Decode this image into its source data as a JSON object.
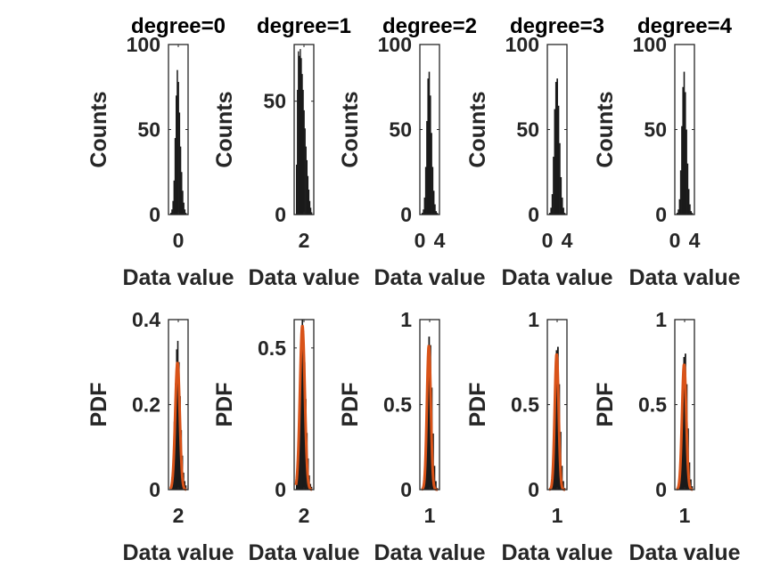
{
  "figure": {
    "background": "#ffffff",
    "axes_color": "#262626",
    "bar_color": "#1a1a1a",
    "fit_color": "#d95319"
  },
  "chart_data": [
    {
      "type": "bar",
      "title": "degree=0",
      "xlabel": "Data value",
      "ylabel": "Counts",
      "xticks": [
        "0"
      ],
      "yticks": [
        "0",
        "50",
        "100"
      ],
      "ylim": [
        0,
        100
      ],
      "series": [
        {
          "values": [
            1,
            3,
            8,
            20,
            45,
            70,
            85,
            78,
            60,
            40,
            25,
            14,
            7,
            3,
            1
          ]
        }
      ]
    },
    {
      "type": "bar",
      "title": "degree=1",
      "xlabel": "Data value",
      "ylabel": "Counts",
      "xticks": [
        "2"
      ],
      "yticks": [
        "0",
        "50"
      ],
      "ylim": [
        0,
        75
      ],
      "series": [
        {
          "values": [
            22,
            55,
            72,
            70,
            73,
            69,
            62,
            55,
            46,
            38,
            30,
            24,
            17,
            11,
            6,
            3,
            1
          ]
        }
      ]
    },
    {
      "type": "bar",
      "title": "degree=2",
      "xlabel": "Data value",
      "ylabel": "Counts",
      "xticks": [
        "0",
        "4"
      ],
      "yticks": [
        "0",
        "50",
        "100"
      ],
      "ylim": [
        0,
        100
      ],
      "series": [
        {
          "values": [
            1,
            3,
            10,
            28,
            55,
            80,
            84,
            70,
            48,
            28,
            14,
            6,
            2,
            1
          ]
        }
      ]
    },
    {
      "type": "bar",
      "title": "degree=3",
      "xlabel": "Data value",
      "ylabel": "Counts",
      "xticks": [
        "0",
        "4"
      ],
      "yticks": [
        "0",
        "50",
        "100"
      ],
      "ylim": [
        0,
        100
      ],
      "series": [
        {
          "values": [
            1,
            4,
            12,
            34,
            62,
            78,
            80,
            64,
            42,
            22,
            10,
            4,
            1
          ]
        }
      ]
    },
    {
      "type": "bar",
      "title": "degree=4",
      "xlabel": "Data value",
      "ylabel": "Counts",
      "xticks": [
        "0",
        "4"
      ],
      "yticks": [
        "0",
        "50",
        "100"
      ],
      "ylim": [
        0,
        100
      ],
      "series": [
        {
          "values": [
            1,
            3,
            9,
            26,
            52,
            75,
            84,
            72,
            50,
            30,
            15,
            6,
            2,
            1
          ]
        }
      ]
    },
    {
      "type": "bar",
      "xlabel": "Data value",
      "ylabel": "PDF",
      "xticks": [
        "2"
      ],
      "yticks": [
        "0",
        "0.2",
        "0.4"
      ],
      "ylim": [
        0,
        0.4
      ],
      "series": [
        {
          "values": [
            0.01,
            0.03,
            0.08,
            0.16,
            0.25,
            0.33,
            0.35,
            0.3,
            0.22,
            0.14,
            0.08,
            0.04,
            0.02,
            0.01
          ]
        }
      ],
      "fit": {
        "peak": 0.3,
        "center": 0.45,
        "width": 0.14
      }
    },
    {
      "type": "bar",
      "xlabel": "Data value",
      "ylabel": "PDF",
      "xticks": [
        "2"
      ],
      "yticks": [
        "0",
        "0.5"
      ],
      "ylim": [
        0,
        0.6
      ],
      "series": [
        {
          "values": [
            0.02,
            0.08,
            0.22,
            0.4,
            0.55,
            0.6,
            0.56,
            0.45,
            0.32,
            0.2,
            0.11,
            0.05,
            0.02,
            0.01
          ]
        }
      ],
      "fit": {
        "peak": 0.58,
        "center": 0.4,
        "width": 0.15
      }
    },
    {
      "type": "bar",
      "xlabel": "Data value",
      "ylabel": "PDF",
      "xticks": [
        "1"
      ],
      "yticks": [
        "0",
        "0.5",
        "1"
      ],
      "ylim": [
        0,
        1
      ],
      "series": [
        {
          "values": [
            0.01,
            0.05,
            0.15,
            0.4,
            0.72,
            0.9,
            0.85,
            0.6,
            0.33,
            0.14,
            0.05,
            0.01
          ]
        }
      ],
      "fit": {
        "peak": 0.85,
        "center": 0.45,
        "width": 0.12
      }
    },
    {
      "type": "bar",
      "xlabel": "Data value",
      "ylabel": "PDF",
      "xticks": [
        "1"
      ],
      "yticks": [
        "0",
        "0.5",
        "1"
      ],
      "ylim": [
        0,
        1
      ],
      "series": [
        {
          "values": [
            0.01,
            0.04,
            0.14,
            0.38,
            0.7,
            0.82,
            0.84,
            0.62,
            0.34,
            0.14,
            0.05,
            0.01
          ]
        }
      ],
      "fit": {
        "peak": 0.8,
        "center": 0.47,
        "width": 0.12
      }
    },
    {
      "type": "bar",
      "xlabel": "Data value",
      "ylabel": "PDF",
      "xticks": [
        "1"
      ],
      "yticks": [
        "0",
        "0.5",
        "1"
      ],
      "ylim": [
        0,
        1
      ],
      "series": [
        {
          "values": [
            0.01,
            0.04,
            0.12,
            0.32,
            0.6,
            0.78,
            0.8,
            0.62,
            0.36,
            0.16,
            0.06,
            0.02
          ]
        }
      ],
      "fit": {
        "peak": 0.74,
        "center": 0.47,
        "width": 0.13
      }
    }
  ]
}
